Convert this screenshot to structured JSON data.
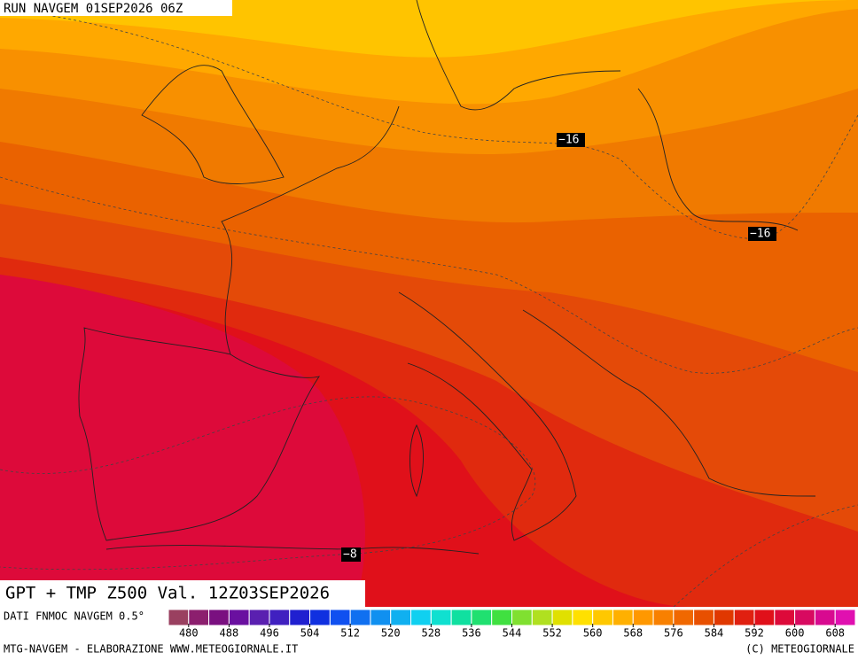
{
  "header": {
    "run": "RUN NAVGEM 01SEP2026 06Z"
  },
  "contour_labels": [
    "−16",
    "−16",
    "−8"
  ],
  "title": "GPT + TMP Z500 Val. 12Z03SEP2026",
  "source": "DATI FNMOC NAVGEM 0.5°",
  "colorbar": {
    "range": [
      476,
      612
    ],
    "ticks": [
      480,
      488,
      496,
      504,
      512,
      520,
      528,
      536,
      544,
      552,
      560,
      568,
      576,
      584,
      592,
      600,
      608
    ],
    "colors": [
      "#9a4060",
      "#8c1f6e",
      "#7a1080",
      "#6a10a0",
      "#5a20b0",
      "#4020c0",
      "#2020d0",
      "#1030e0",
      "#1050f0",
      "#1070f0",
      "#1090f0",
      "#10b0f0",
      "#10d0f0",
      "#10e0d0",
      "#10e0a0",
      "#20e070",
      "#40e040",
      "#80e030",
      "#b0e020",
      "#e0e000",
      "#ffe000",
      "#ffc800",
      "#ffb000",
      "#ff9800",
      "#f88000",
      "#f06800",
      "#e85000",
      "#e03800",
      "#e02010",
      "#e0101a",
      "#dd0a3a",
      "#d80a60",
      "#d80a90",
      "#e010b0"
    ]
  },
  "footer": {
    "left": "MTG-NAVGEM - ELABORAZIONE WWW.METEOGIORNALE.IT",
    "right": "(C) METEOGIORNALE"
  }
}
